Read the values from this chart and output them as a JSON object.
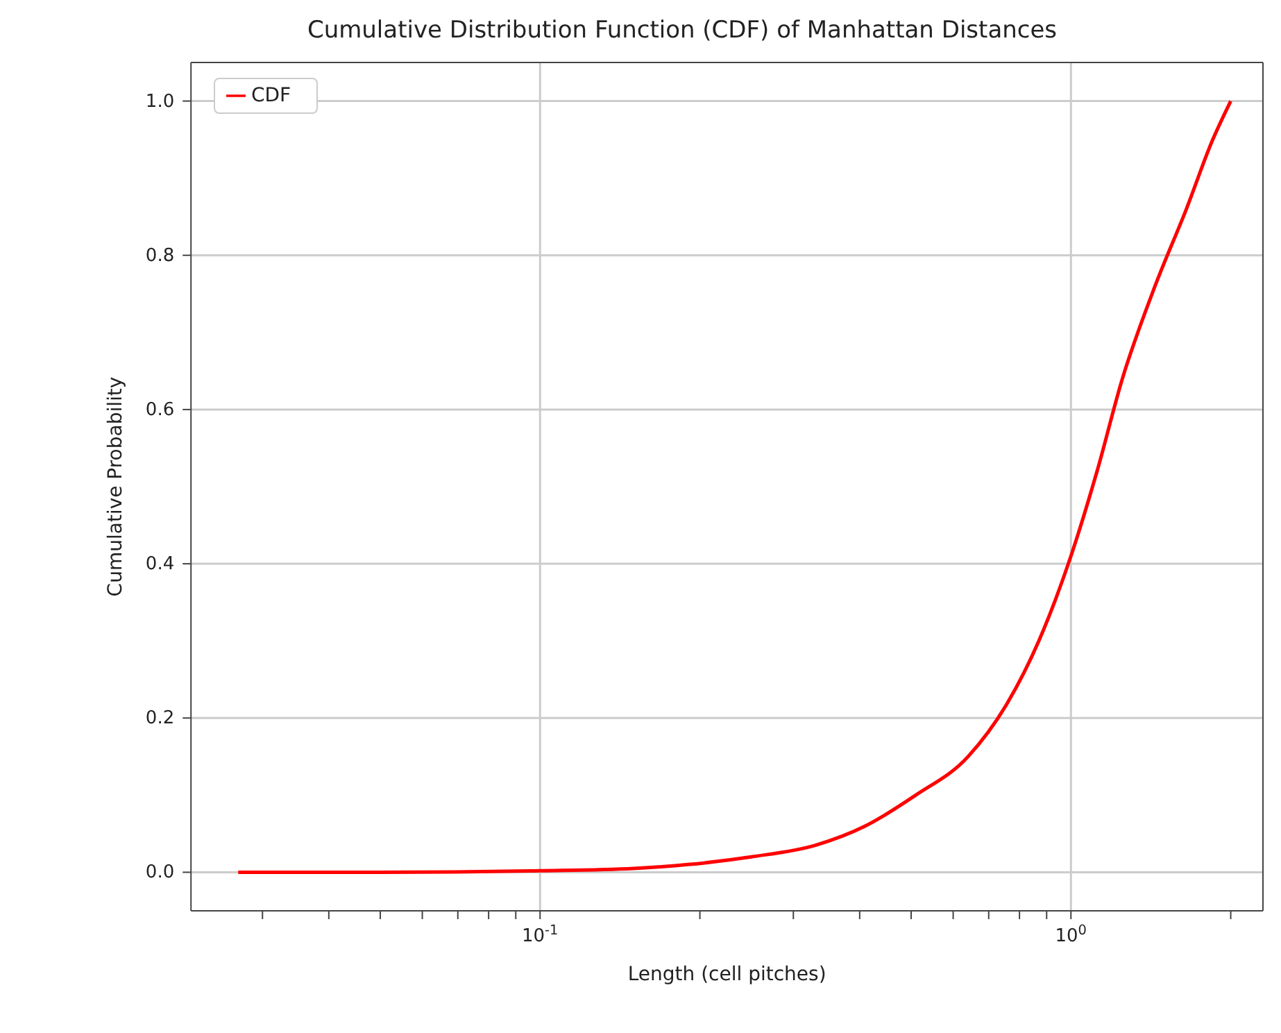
{
  "chart_data": {
    "type": "line",
    "title": "Cumulative Distribution Function (CDF) of Manhattan Distances",
    "xlabel": "Length (cell pitches)",
    "ylabel": "Cumulative Probability",
    "log": "x",
    "xlim": [
      0.022,
      2.3
    ],
    "ylim": [
      -0.05,
      1.05
    ],
    "xticks": [
      {
        "value": 0.03,
        "label": null
      },
      {
        "value": 0.04,
        "label": null
      },
      {
        "value": 0.05,
        "label": null
      },
      {
        "value": 0.06,
        "label": null
      },
      {
        "value": 0.07,
        "label": null
      },
      {
        "value": 0.08,
        "label": null
      },
      {
        "value": 0.09,
        "label": null
      },
      {
        "value": 0.1,
        "label": "10$^{-1}$"
      },
      {
        "value": 0.2,
        "label": null
      },
      {
        "value": 0.3,
        "label": null
      },
      {
        "value": 0.4,
        "label": null
      },
      {
        "value": 0.5,
        "label": null
      },
      {
        "value": 0.6,
        "label": null
      },
      {
        "value": 0.7,
        "label": null
      },
      {
        "value": 0.8,
        "label": null
      },
      {
        "value": 0.9,
        "label": null
      },
      {
        "value": 1,
        "label": "10$^{0}$"
      },
      {
        "value": 2,
        "label": null
      }
    ],
    "yticks": [
      {
        "value": 0,
        "label": "0.0"
      },
      {
        "value": 0.2,
        "label": "0.2"
      },
      {
        "value": 0.4,
        "label": "0.4"
      },
      {
        "value": 0.6,
        "label": "0.6"
      },
      {
        "value": 0.8,
        "label": "0.8"
      },
      {
        "value": 1,
        "label": "1.0"
      }
    ],
    "grid": true,
    "legend": "top left",
    "marker": "none",
    "line_style": "solid",
    "series": [
      {
        "name": "CDF",
        "color": "#ff0000",
        "x": [
          0.027,
          0.05,
          0.1,
          0.15,
          0.19,
          0.25,
          0.33,
          0.41,
          0.51,
          0.64,
          0.76,
          0.87,
          1.0,
          1.12,
          1.25,
          1.44,
          1.65,
          1.85,
          2.0
        ],
        "values": [
          0,
          0,
          0.002,
          0.005,
          0.01,
          0.02,
          0.035,
          0.06,
          0.1,
          0.15,
          0.22,
          0.3,
          0.41,
          0.52,
          0.64,
          0.76,
          0.86,
          0.95,
          1.0
        ]
      }
    ]
  }
}
